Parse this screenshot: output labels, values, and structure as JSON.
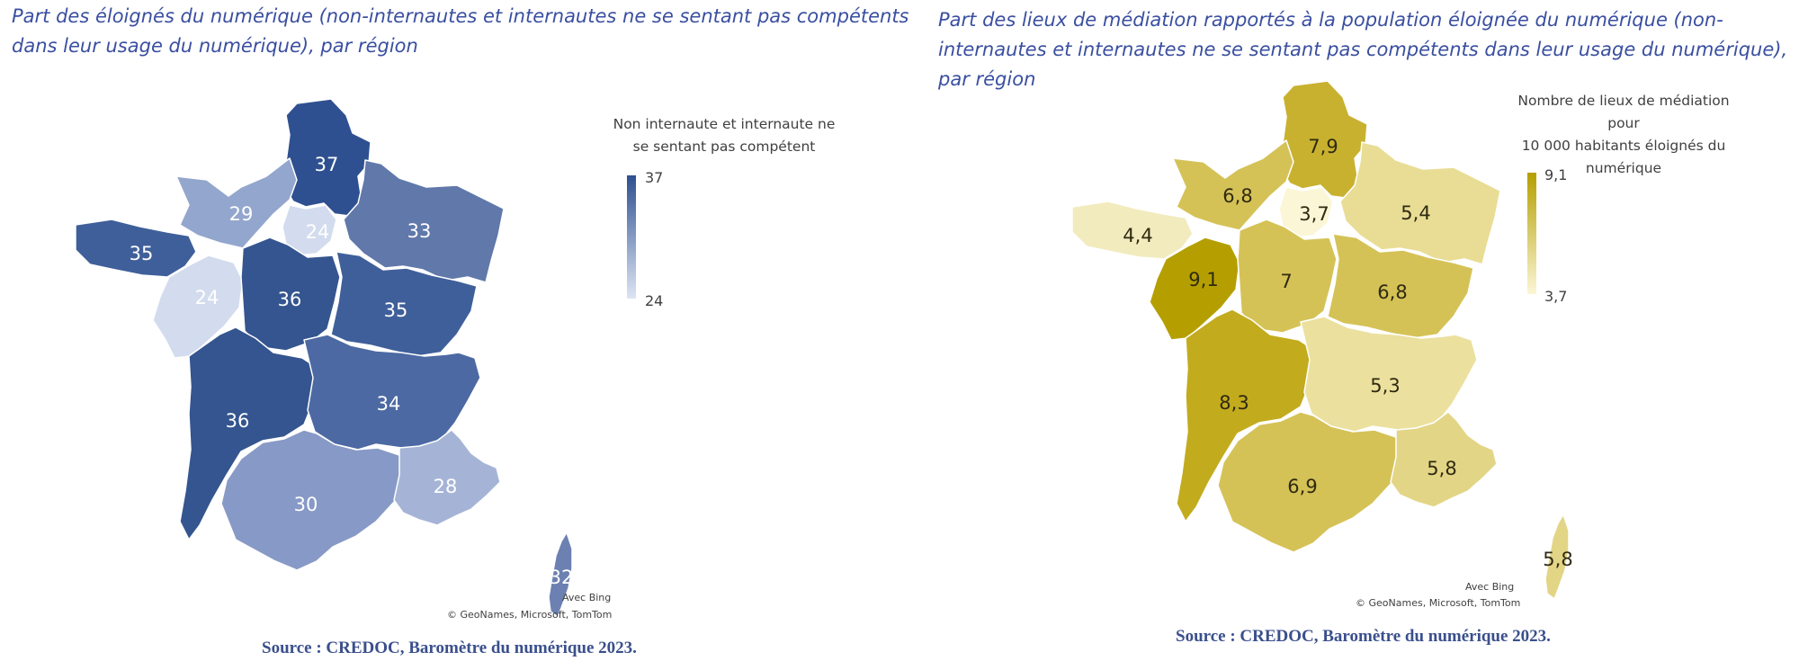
{
  "left_map": {
    "title": "Part des éloignés du numérique (non-internautes et internautes ne se sentant pas compétents dans leur usage du numérique), par région",
    "legend": {
      "title_line1": "Non internaute et internaute ne",
      "title_line2": "se sentant pas compétent",
      "max": "37",
      "min": "24",
      "color_max": "#2e5090",
      "color_min": "#dde5f3"
    },
    "regions": [
      {
        "id": "hauts-de-france",
        "label": "37",
        "value": 37,
        "color": "#2e5090"
      },
      {
        "id": "normandie",
        "label": "29",
        "value": 29,
        "color": "#93a6cd"
      },
      {
        "id": "ile-de-france",
        "label": "24",
        "value": 24,
        "color": "#d3dcee"
      },
      {
        "id": "grand-est",
        "label": "33",
        "value": 33,
        "color": "#6078aa"
      },
      {
        "id": "bretagne",
        "label": "35",
        "value": 35,
        "color": "#3f5f9a"
      },
      {
        "id": "pays-de-la-loire",
        "label": "24",
        "value": 24,
        "color": "#d3dcee"
      },
      {
        "id": "centre-val-de-loire",
        "label": "36",
        "value": 36,
        "color": "#34558f"
      },
      {
        "id": "bourgogne-franche-comte",
        "label": "35",
        "value": 35,
        "color": "#3f5f9a"
      },
      {
        "id": "nouvelle-aquitaine",
        "label": "36",
        "value": 36,
        "color": "#34558f"
      },
      {
        "id": "auvergne-rhone-alpes",
        "label": "34",
        "value": 34,
        "color": "#4c69a3"
      },
      {
        "id": "occitanie",
        "label": "30",
        "value": 30,
        "color": "#8799c6"
      },
      {
        "id": "provence-alpes-cote-d-azur",
        "label": "28",
        "value": 28,
        "color": "#a5b4d6"
      },
      {
        "id": "corse",
        "label": "32",
        "value": 32,
        "color": "#6c80b1"
      }
    ],
    "attribution_bing": "Avec Bing",
    "attribution_copyright": "© GeoNames, Microsoft, TomTom",
    "source": "Source : CREDOC, Baromètre du numérique 2023."
  },
  "right_map": {
    "title": "Part des lieux de médiation rapportés à la population éloignée du numérique (non-internautes et internautes ne se sentant pas compétents dans leur usage du numérique), par région",
    "legend": {
      "title_line1": "Nombre de lieux de médiation pour",
      "title_line2": "10 000 habitants éloignés du",
      "title_line3": "numérique",
      "max": "9,1",
      "min": "3,7",
      "color_max": "#b59f00",
      "color_min": "#fbf6d6"
    },
    "regions": [
      {
        "id": "hauts-de-france",
        "label": "7,9",
        "value": 7.9,
        "color": "#c8b12f"
      },
      {
        "id": "normandie",
        "label": "6,8",
        "value": 6.8,
        "color": "#d5c257"
      },
      {
        "id": "ile-de-france",
        "label": "3,7",
        "value": 3.7,
        "color": "#fbf6d6"
      },
      {
        "id": "grand-est",
        "label": "5,4",
        "value": 5.4,
        "color": "#e9dd96"
      },
      {
        "id": "bretagne",
        "label": "4,4",
        "value": 4.4,
        "color": "#f2ebbd"
      },
      {
        "id": "pays-de-la-loire",
        "label": "9,1",
        "value": 9.1,
        "color": "#b59f00"
      },
      {
        "id": "centre-val-de-loire",
        "label": "7",
        "value": 7,
        "color": "#d5c257"
      },
      {
        "id": "bourgogne-franche-comte",
        "label": "6,8",
        "value": 6.8,
        "color": "#d5c257"
      },
      {
        "id": "nouvelle-aquitaine",
        "label": "8,3",
        "value": 8.3,
        "color": "#c3ab1e"
      },
      {
        "id": "auvergne-rhone-alpes",
        "label": "5,3",
        "value": 5.3,
        "color": "#ebe09e"
      },
      {
        "id": "occitanie",
        "label": "6,9",
        "value": 6.9,
        "color": "#d5c257"
      },
      {
        "id": "provence-alpes-cote-d-azur",
        "label": "5,8",
        "value": 5.8,
        "color": "#e3d586"
      },
      {
        "id": "corse",
        "label": "5,8",
        "value": 5.8,
        "color": "#e3d586"
      }
    ],
    "attribution_bing": "Avec Bing",
    "attribution_copyright": "© GeoNames, Microsoft, TomTom",
    "source": "Source : CREDOC, Baromètre du numérique 2023."
  }
}
